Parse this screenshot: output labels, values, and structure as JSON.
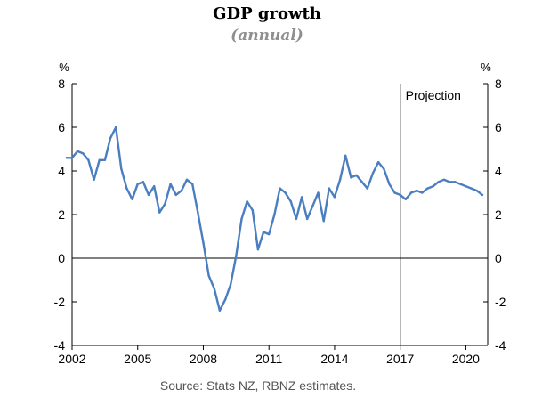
{
  "colors": {
    "series": "#4a7ec0",
    "axis": "#000000",
    "subtitle": "#8f8f8f",
    "source": "#555555"
  },
  "chart_data": {
    "type": "line",
    "title": "GDP growth",
    "subtitle": "(annual)",
    "ylabel_left": "%",
    "ylabel_right": "%",
    "ylim": [
      -4,
      8
    ],
    "yticks": [
      -4,
      -2,
      0,
      2,
      4,
      6,
      8
    ],
    "ytick_labels": [
      "-4",
      "-2",
      "0",
      "2",
      "4",
      "6",
      "8"
    ],
    "xlim": [
      2002,
      2021
    ],
    "xticks": [
      2002,
      2005,
      2008,
      2011,
      2014,
      2017,
      2020
    ],
    "xtick_labels": [
      "2002",
      "2005",
      "2008",
      "2011",
      "2014",
      "2017",
      "2020"
    ],
    "projection_start": 2017,
    "projection_label": "Projection",
    "source": "Source: Stats NZ, RBNZ estimates.",
    "series": [
      {
        "name": "GDP growth (annual)",
        "x": [
          2001.75,
          2002.0,
          2002.25,
          2002.5,
          2002.75,
          2003.0,
          2003.25,
          2003.5,
          2003.75,
          2004.0,
          2004.25,
          2004.5,
          2004.75,
          2005.0,
          2005.25,
          2005.5,
          2005.75,
          2006.0,
          2006.25,
          2006.5,
          2006.75,
          2007.0,
          2007.25,
          2007.5,
          2007.75,
          2008.0,
          2008.25,
          2008.5,
          2008.75,
          2009.0,
          2009.25,
          2009.5,
          2009.75,
          2010.0,
          2010.25,
          2010.5,
          2010.75,
          2011.0,
          2011.25,
          2011.5,
          2011.75,
          2012.0,
          2012.25,
          2012.5,
          2012.75,
          2013.0,
          2013.25,
          2013.5,
          2013.75,
          2014.0,
          2014.25,
          2014.5,
          2014.75,
          2015.0,
          2015.25,
          2015.5,
          2015.75,
          2016.0,
          2016.25,
          2016.5,
          2016.75,
          2017.0,
          2017.25,
          2017.5,
          2017.75,
          2018.0,
          2018.25,
          2018.5,
          2018.75,
          2019.0,
          2019.25,
          2019.5,
          2019.75,
          2020.0,
          2020.25,
          2020.5,
          2020.75
        ],
        "values": [
          4.6,
          4.6,
          4.9,
          4.8,
          4.5,
          3.6,
          4.5,
          4.5,
          5.5,
          6.0,
          4.1,
          3.2,
          2.7,
          3.4,
          3.5,
          2.9,
          3.3,
          2.1,
          2.5,
          3.4,
          2.9,
          3.1,
          3.6,
          3.4,
          2.1,
          0.7,
          -0.8,
          -1.4,
          -2.4,
          -1.9,
          -1.2,
          0.1,
          1.8,
          2.6,
          2.2,
          0.4,
          1.2,
          1.1,
          2.0,
          3.2,
          3.0,
          2.6,
          1.8,
          2.8,
          1.8,
          2.4,
          3.0,
          1.7,
          3.2,
          2.8,
          3.6,
          4.7,
          3.7,
          3.8,
          3.5,
          3.2,
          3.9,
          4.4,
          4.1,
          3.4,
          3.0,
          2.9,
          2.7,
          3.0,
          3.1,
          3.0,
          3.2,
          3.3,
          3.5,
          3.6,
          3.5,
          3.5,
          3.4,
          3.3,
          3.2,
          3.1,
          2.9
        ]
      }
    ]
  }
}
